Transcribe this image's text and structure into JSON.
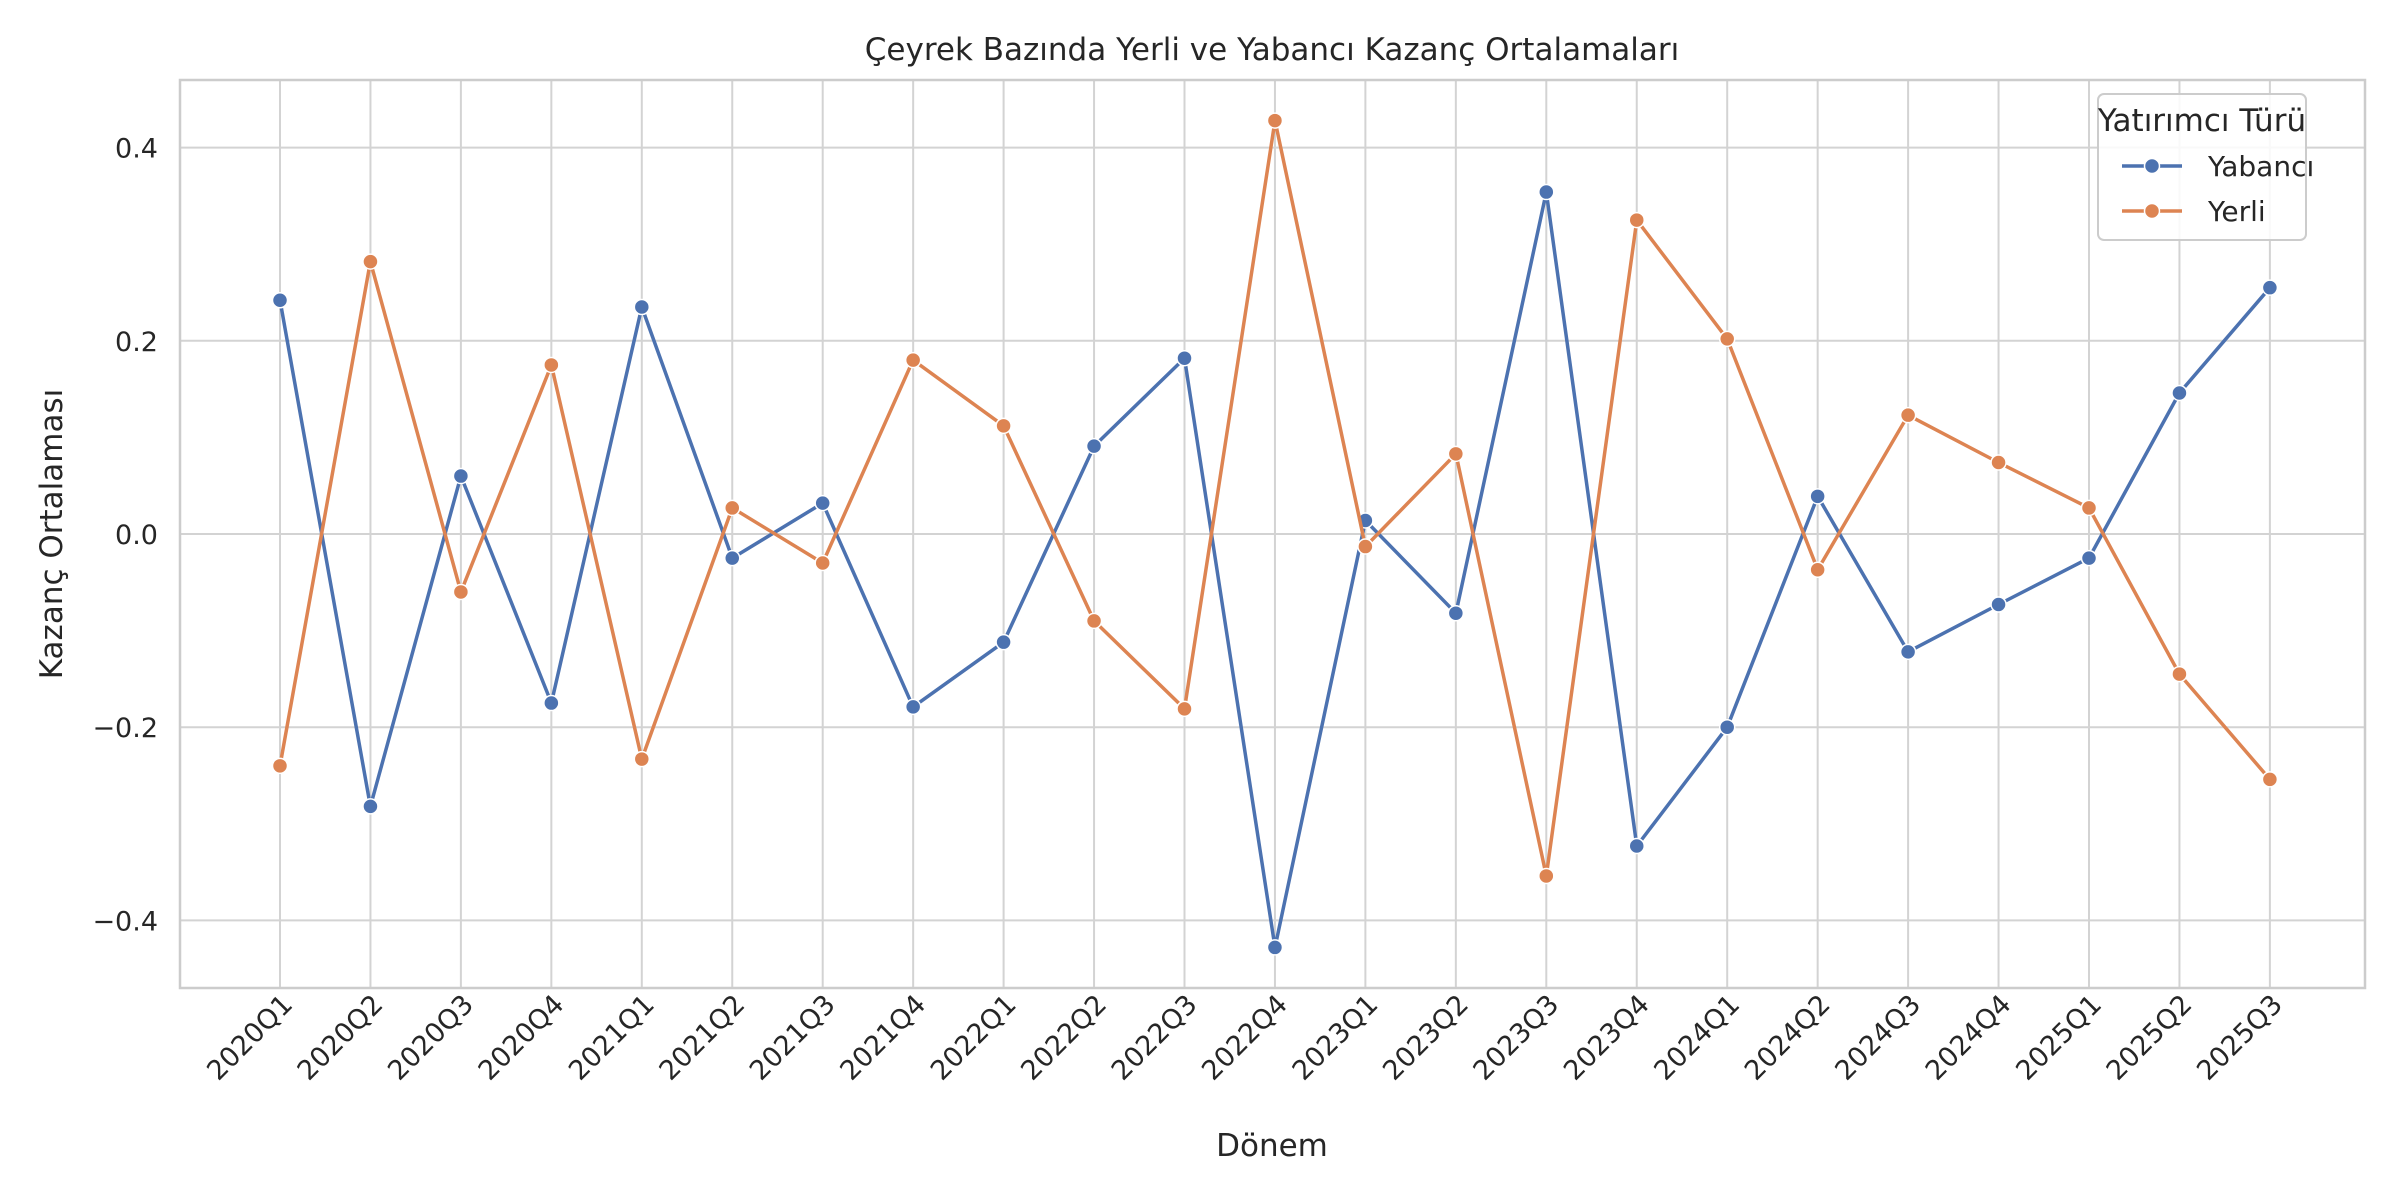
{
  "chart_data": {
    "type": "line",
    "title": "Çeyrek Bazında Yerli ve Yabancı Kazanç Ortalamaları",
    "xlabel": "Dönem",
    "ylabel": "Kazanç Ortalaması",
    "ylim": [
      -0.47,
      0.47
    ],
    "yticks": [
      -0.4,
      -0.2,
      0.0,
      0.2,
      0.4
    ],
    "ytick_labels": [
      "−0.4",
      "−0.2",
      "0.0",
      "0.2",
      "0.4"
    ],
    "grid": true,
    "legend": {
      "title": "Yatırımcı Türü",
      "position": "top-right"
    },
    "categories": [
      "2020Q1",
      "2020Q2",
      "2020Q3",
      "2020Q4",
      "2021Q1",
      "2021Q2",
      "2021Q3",
      "2021Q4",
      "2022Q1",
      "2022Q2",
      "2022Q3",
      "2022Q4",
      "2023Q1",
      "2023Q2",
      "2023Q3",
      "2023Q4",
      "2024Q1",
      "2024Q2",
      "2024Q3",
      "2024Q4",
      "2025Q1",
      "2025Q2",
      "2025Q3"
    ],
    "series": [
      {
        "name": "Yabancı",
        "color": "#4c72b0",
        "values": [
          0.242,
          -0.282,
          0.06,
          -0.175,
          0.235,
          -0.025,
          0.032,
          -0.179,
          -0.112,
          0.091,
          0.182,
          -0.428,
          0.014,
          -0.082,
          0.354,
          -0.323,
          -0.2,
          0.039,
          -0.122,
          -0.073,
          -0.025,
          0.146,
          0.255
        ]
      },
      {
        "name": "Yerli",
        "color": "#dd8452",
        "values": [
          -0.24,
          0.282,
          -0.06,
          0.175,
          -0.233,
          0.027,
          -0.03,
          0.18,
          0.112,
          -0.09,
          -0.181,
          0.428,
          -0.013,
          0.083,
          -0.354,
          0.325,
          0.202,
          -0.037,
          0.123,
          0.074,
          0.027,
          -0.145,
          -0.254
        ]
      }
    ]
  }
}
